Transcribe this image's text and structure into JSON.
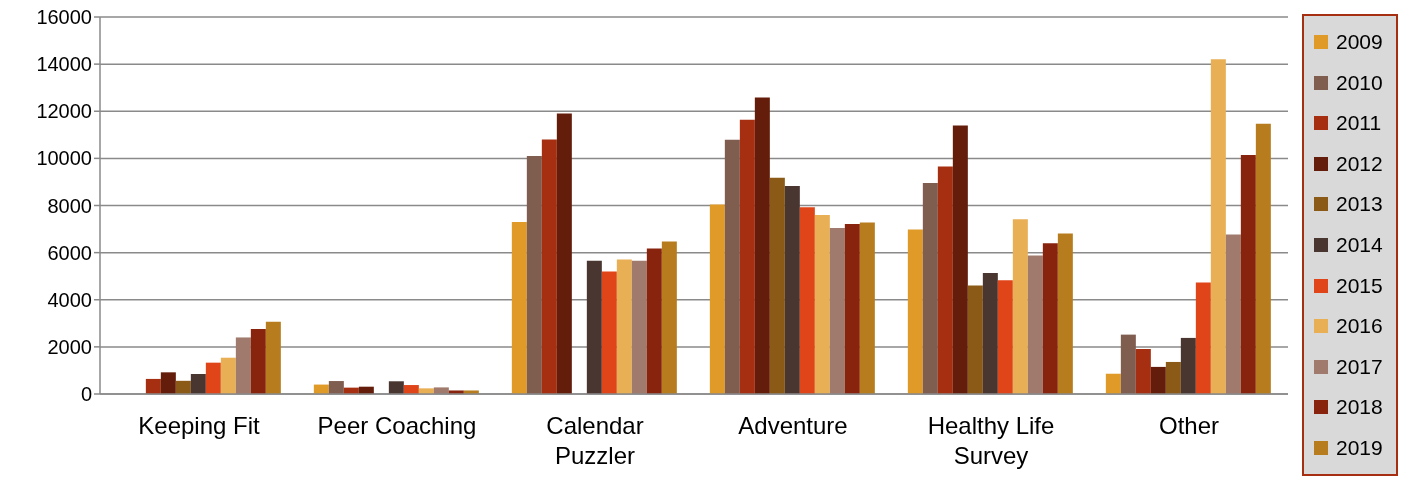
{
  "chart_data": {
    "type": "bar",
    "categories": [
      "Keeping Fit",
      "Peer Coaching",
      "Calendar Puzzler",
      "Adventure",
      "Healthy Life Survey",
      "Other"
    ],
    "series": [
      {
        "name": "2009",
        "color": "#e09a28",
        "values": [
          null,
          400,
          7300,
          8040,
          6980,
          860
        ]
      },
      {
        "name": "2010",
        "color": "#7f5e50",
        "values": [
          null,
          550,
          10100,
          10790,
          8950,
          2520
        ]
      },
      {
        "name": "2011",
        "color": "#a52f10",
        "values": [
          640,
          270,
          10800,
          11640,
          9650,
          1910
        ]
      },
      {
        "name": "2012",
        "color": "#651d0b",
        "values": [
          920,
          310,
          11900,
          12580,
          11400,
          1150
        ]
      },
      {
        "name": "2013",
        "color": "#8a5a16",
        "values": [
          560,
          null,
          null,
          9180,
          4600,
          1360
        ]
      },
      {
        "name": "2014",
        "color": "#4a3630",
        "values": [
          850,
          540,
          5660,
          8830,
          5140,
          2380
        ]
      },
      {
        "name": "2015",
        "color": "#df4519",
        "values": [
          1330,
          380,
          5200,
          7930,
          4830,
          4730
        ]
      },
      {
        "name": "2016",
        "color": "#e8af55",
        "values": [
          1540,
          240,
          5710,
          7600,
          7420,
          14210
        ]
      },
      {
        "name": "2017",
        "color": "#a07a6c",
        "values": [
          2400,
          280,
          5660,
          7050,
          5880,
          6770
        ]
      },
      {
        "name": "2018",
        "color": "#88240e",
        "values": [
          2760,
          150,
          6180,
          7210,
          6400,
          10140
        ]
      },
      {
        "name": "2019",
        "color": "#b77c1e",
        "values": [
          3070,
          150,
          6470,
          7280,
          6810,
          11470
        ]
      }
    ],
    "ylim": [
      0,
      16000
    ],
    "yticks": [
      0,
      2000,
      4000,
      6000,
      8000,
      10000,
      12000,
      14000,
      16000
    ],
    "grid": "y",
    "legend": "right"
  }
}
